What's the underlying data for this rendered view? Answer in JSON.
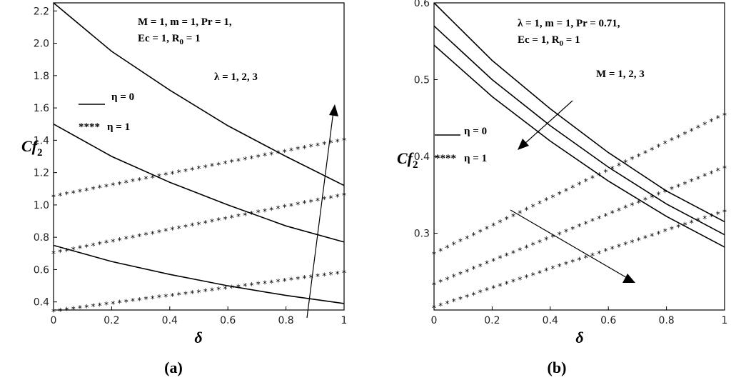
{
  "chart_data": [
    {
      "type": "line",
      "panel_label": "(a)",
      "panel_letter": "a",
      "xlabel": "δ",
      "ylabel_main": "Cf",
      "ylabel_sub": "2",
      "xlim": [
        0,
        1
      ],
      "ylim": [
        0.35,
        2.25
      ],
      "x_ticks": [
        "0",
        "0.2",
        "0.4",
        "0.6",
        "0.8",
        "1"
      ],
      "y_ticks": [
        "0.4",
        "0.6",
        "0.8",
        "1.0",
        "1.2",
        "1.4",
        "1.6",
        "1.8",
        "2.0",
        "2.2"
      ],
      "params_line1": "M = 1, m = 1, Pr  = 1,",
      "params_line2": "Ec = 1, R",
      "params_line2_sub": "0",
      "params_line2_tail": " = 1",
      "arrow_label": "λ = 1, 2, 3",
      "legend": [
        {
          "symbol": "line",
          "label": "η = 0"
        },
        {
          "symbol": "star",
          "marker": "****",
          "label": "η = 1"
        }
      ],
      "series": [
        {
          "name": "η = 0",
          "style": "solid",
          "x": [
            0,
            0.2,
            0.4,
            0.6,
            0.8,
            1
          ],
          "y": [
            0.75,
            0.65,
            0.57,
            0.5,
            0.44,
            0.39
          ]
        },
        {
          "name": "η = 0",
          "style": "solid",
          "x": [
            0,
            0.2,
            0.4,
            0.6,
            0.8,
            1
          ],
          "y": [
            1.5,
            1.3,
            1.14,
            1.0,
            0.87,
            0.77
          ]
        },
        {
          "name": "η = 0",
          "style": "solid",
          "x": [
            0,
            0.2,
            0.4,
            0.6,
            0.8,
            1
          ],
          "y": [
            2.25,
            1.95,
            1.71,
            1.49,
            1.3,
            1.12
          ]
        },
        {
          "name": "η = 1",
          "style": "star",
          "x": [
            0,
            1
          ],
          "y": [
            0.35,
            0.59
          ]
        },
        {
          "name": "η = 1",
          "style": "star",
          "x": [
            0,
            1
          ],
          "y": [
            0.71,
            1.07
          ]
        },
        {
          "name": "η = 1",
          "style": "star",
          "x": [
            0,
            1
          ],
          "y": [
            1.06,
            1.41
          ]
        }
      ]
    },
    {
      "type": "line",
      "panel_label": "(b)",
      "panel_letter": "b",
      "xlabel": "δ",
      "ylabel_main": "Cf",
      "ylabel_sub": "2",
      "xlim": [
        0,
        1
      ],
      "ylim": [
        0.2,
        0.6
      ],
      "x_ticks": [
        "0",
        "0.2",
        "0.4",
        "0.6",
        "0.8",
        "1"
      ],
      "y_ticks": [
        "0.3",
        "0.4",
        "0.5",
        "0.6"
      ],
      "params_line1": "λ = 1, m = 1, Pr  = 0.71,",
      "params_line2": "Ec = 1, R",
      "params_line2_sub": "0",
      "params_line2_tail": " = 1",
      "arrow_label": "M = 1, 2, 3",
      "legend": [
        {
          "symbol": "line",
          "label": "η = 0"
        },
        {
          "symbol": "star",
          "marker": "****",
          "label": "η = 1"
        }
      ],
      "series": [
        {
          "name": "η = 0",
          "style": "solid",
          "x": [
            0,
            0.2,
            0.4,
            0.6,
            0.8,
            1
          ],
          "y": [
            0.6,
            0.525,
            0.462,
            0.405,
            0.355,
            0.315
          ]
        },
        {
          "name": "η = 0",
          "style": "solid",
          "x": [
            0,
            0.2,
            0.4,
            0.6,
            0.8,
            1
          ],
          "y": [
            0.57,
            0.5,
            0.44,
            0.386,
            0.338,
            0.298
          ]
        },
        {
          "name": "η = 0",
          "style": "solid",
          "x": [
            0,
            0.2,
            0.4,
            0.6,
            0.8,
            1
          ],
          "y": [
            0.545,
            0.478,
            0.42,
            0.368,
            0.322,
            0.282
          ]
        },
        {
          "name": "η = 1",
          "style": "star",
          "x": [
            0,
            1
          ],
          "y": [
            0.275,
            0.456
          ]
        },
        {
          "name": "η = 1",
          "style": "star",
          "x": [
            0,
            1
          ],
          "y": [
            0.235,
            0.387
          ]
        },
        {
          "name": "η = 1",
          "style": "star",
          "x": [
            0,
            1
          ],
          "y": [
            0.205,
            0.33
          ]
        }
      ]
    }
  ]
}
